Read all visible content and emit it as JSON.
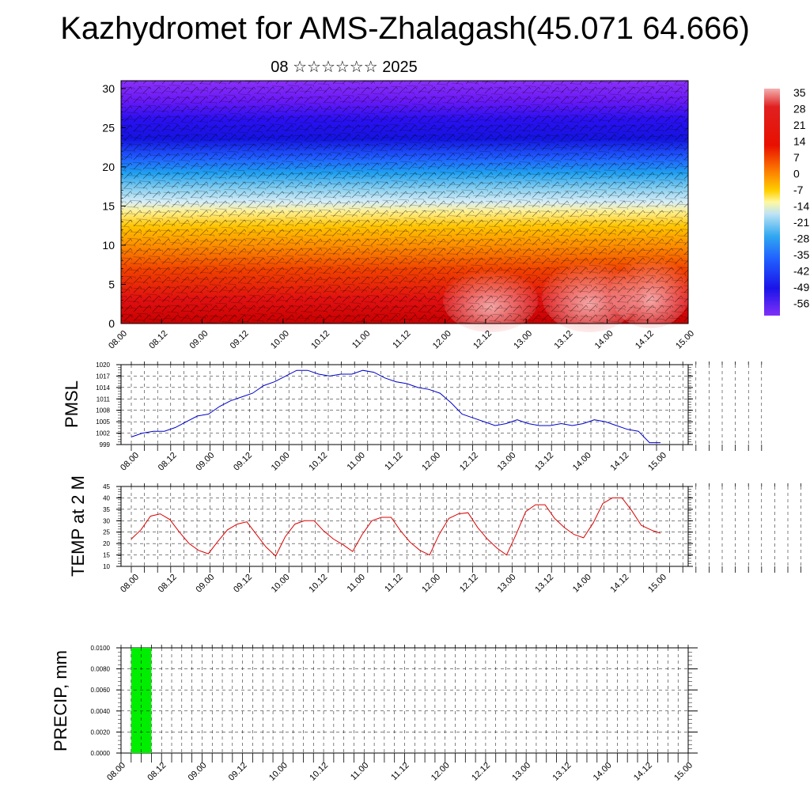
{
  "title": "Kazhydromet for AMS-Zhalagash(45.071 64.666)",
  "subtitle": "08 ☆☆☆☆☆☆ 2025",
  "time_ticks": [
    "08.00",
    "08.12",
    "09.00",
    "09.12",
    "10.00",
    "10.12",
    "11.00",
    "11.12",
    "12.00",
    "12.12",
    "13.00",
    "13.12",
    "14.00",
    "14.12",
    "15.00"
  ],
  "chart_data": [
    {
      "type": "heatmap",
      "title": "",
      "xlabel": "",
      "ylabel": "",
      "ylim": [
        0,
        31
      ],
      "yticks": [
        0,
        5,
        10,
        15,
        20,
        25,
        30
      ],
      "x": [
        "08.00",
        "08.12",
        "09.00",
        "09.12",
        "10.00",
        "10.12",
        "11.00",
        "11.12",
        "12.00",
        "12.12",
        "13.00",
        "13.12",
        "14.00",
        "14.12",
        "15.00"
      ],
      "colorbar_labels": [
        "35",
        "28",
        "21",
        "14",
        "7",
        "0",
        "-7",
        "-14",
        "-21",
        "-28",
        "-35",
        "-42",
        "-49",
        "-56"
      ],
      "colorbar_range": [
        -56,
        35
      ],
      "overlay": "wind barbs",
      "temperature_profile": {
        "levels": [
          0,
          4,
          8,
          12,
          15,
          17,
          19,
          21,
          23,
          25,
          28,
          31
        ],
        "values": [
          30,
          25,
          18,
          8,
          -2,
          -14,
          -28,
          -40,
          -52,
          -56,
          -50,
          -48
        ]
      }
    },
    {
      "type": "line",
      "ylabel": "PMSL",
      "ylim": [
        999,
        1020
      ],
      "yticks": [
        999,
        1002,
        1005,
        1008,
        1011,
        1014,
        1017,
        1020
      ],
      "color": "#0000cc",
      "x_step_hours": 3,
      "values": [
        1001,
        1002,
        1002.5,
        1002.5,
        1003.5,
        1005,
        1006.5,
        1007,
        1009,
        1010.5,
        1011.5,
        1012.5,
        1014.5,
        1015.5,
        1017,
        1018.5,
        1018.5,
        1017.5,
        1017,
        1017.5,
        1017.5,
        1018.5,
        1018,
        1016.5,
        1015.5,
        1015,
        1014,
        1013.5,
        1012.5,
        1010,
        1007,
        1006,
        1005,
        1004,
        1004.5,
        1005.5,
        1004.5,
        1004,
        1004,
        1004.5,
        1004,
        1004.5,
        1005.5,
        1005,
        1004,
        1003,
        1002.5,
        999.5,
        999.5
      ]
    },
    {
      "type": "line",
      "ylabel": "TEMP at 2 M",
      "ylim": [
        10,
        45
      ],
      "yticks": [
        10,
        15,
        20,
        25,
        30,
        35,
        40,
        45
      ],
      "color": "#dd0000",
      "x_step_hours": 3,
      "values": [
        22,
        26,
        32,
        33,
        30.5,
        25,
        20,
        17,
        15.5,
        21,
        26,
        28.5,
        29.5,
        24,
        18.5,
        14.5,
        23,
        28.5,
        30,
        30,
        25.5,
        22,
        19.5,
        16.5,
        24,
        30,
        31.5,
        31.5,
        25.5,
        20.5,
        17,
        15,
        24,
        31,
        33,
        33.5,
        27,
        22,
        18,
        15,
        24,
        34,
        37,
        37,
        31,
        27,
        24,
        22.5,
        29,
        37.5,
        40,
        40,
        34.5,
        28,
        26,
        24.5
      ]
    },
    {
      "type": "bar",
      "ylabel": "PRECIP, mm",
      "ylim": [
        0,
        0.01
      ],
      "yticks": [
        "0.0000",
        "0.0020",
        "0.0040",
        "0.0060",
        "0.0080",
        "0.0100"
      ],
      "color": "#00ee00",
      "bars": [
        {
          "from_hour": 3,
          "to_hour": 9,
          "value": 0.01
        }
      ]
    }
  ]
}
